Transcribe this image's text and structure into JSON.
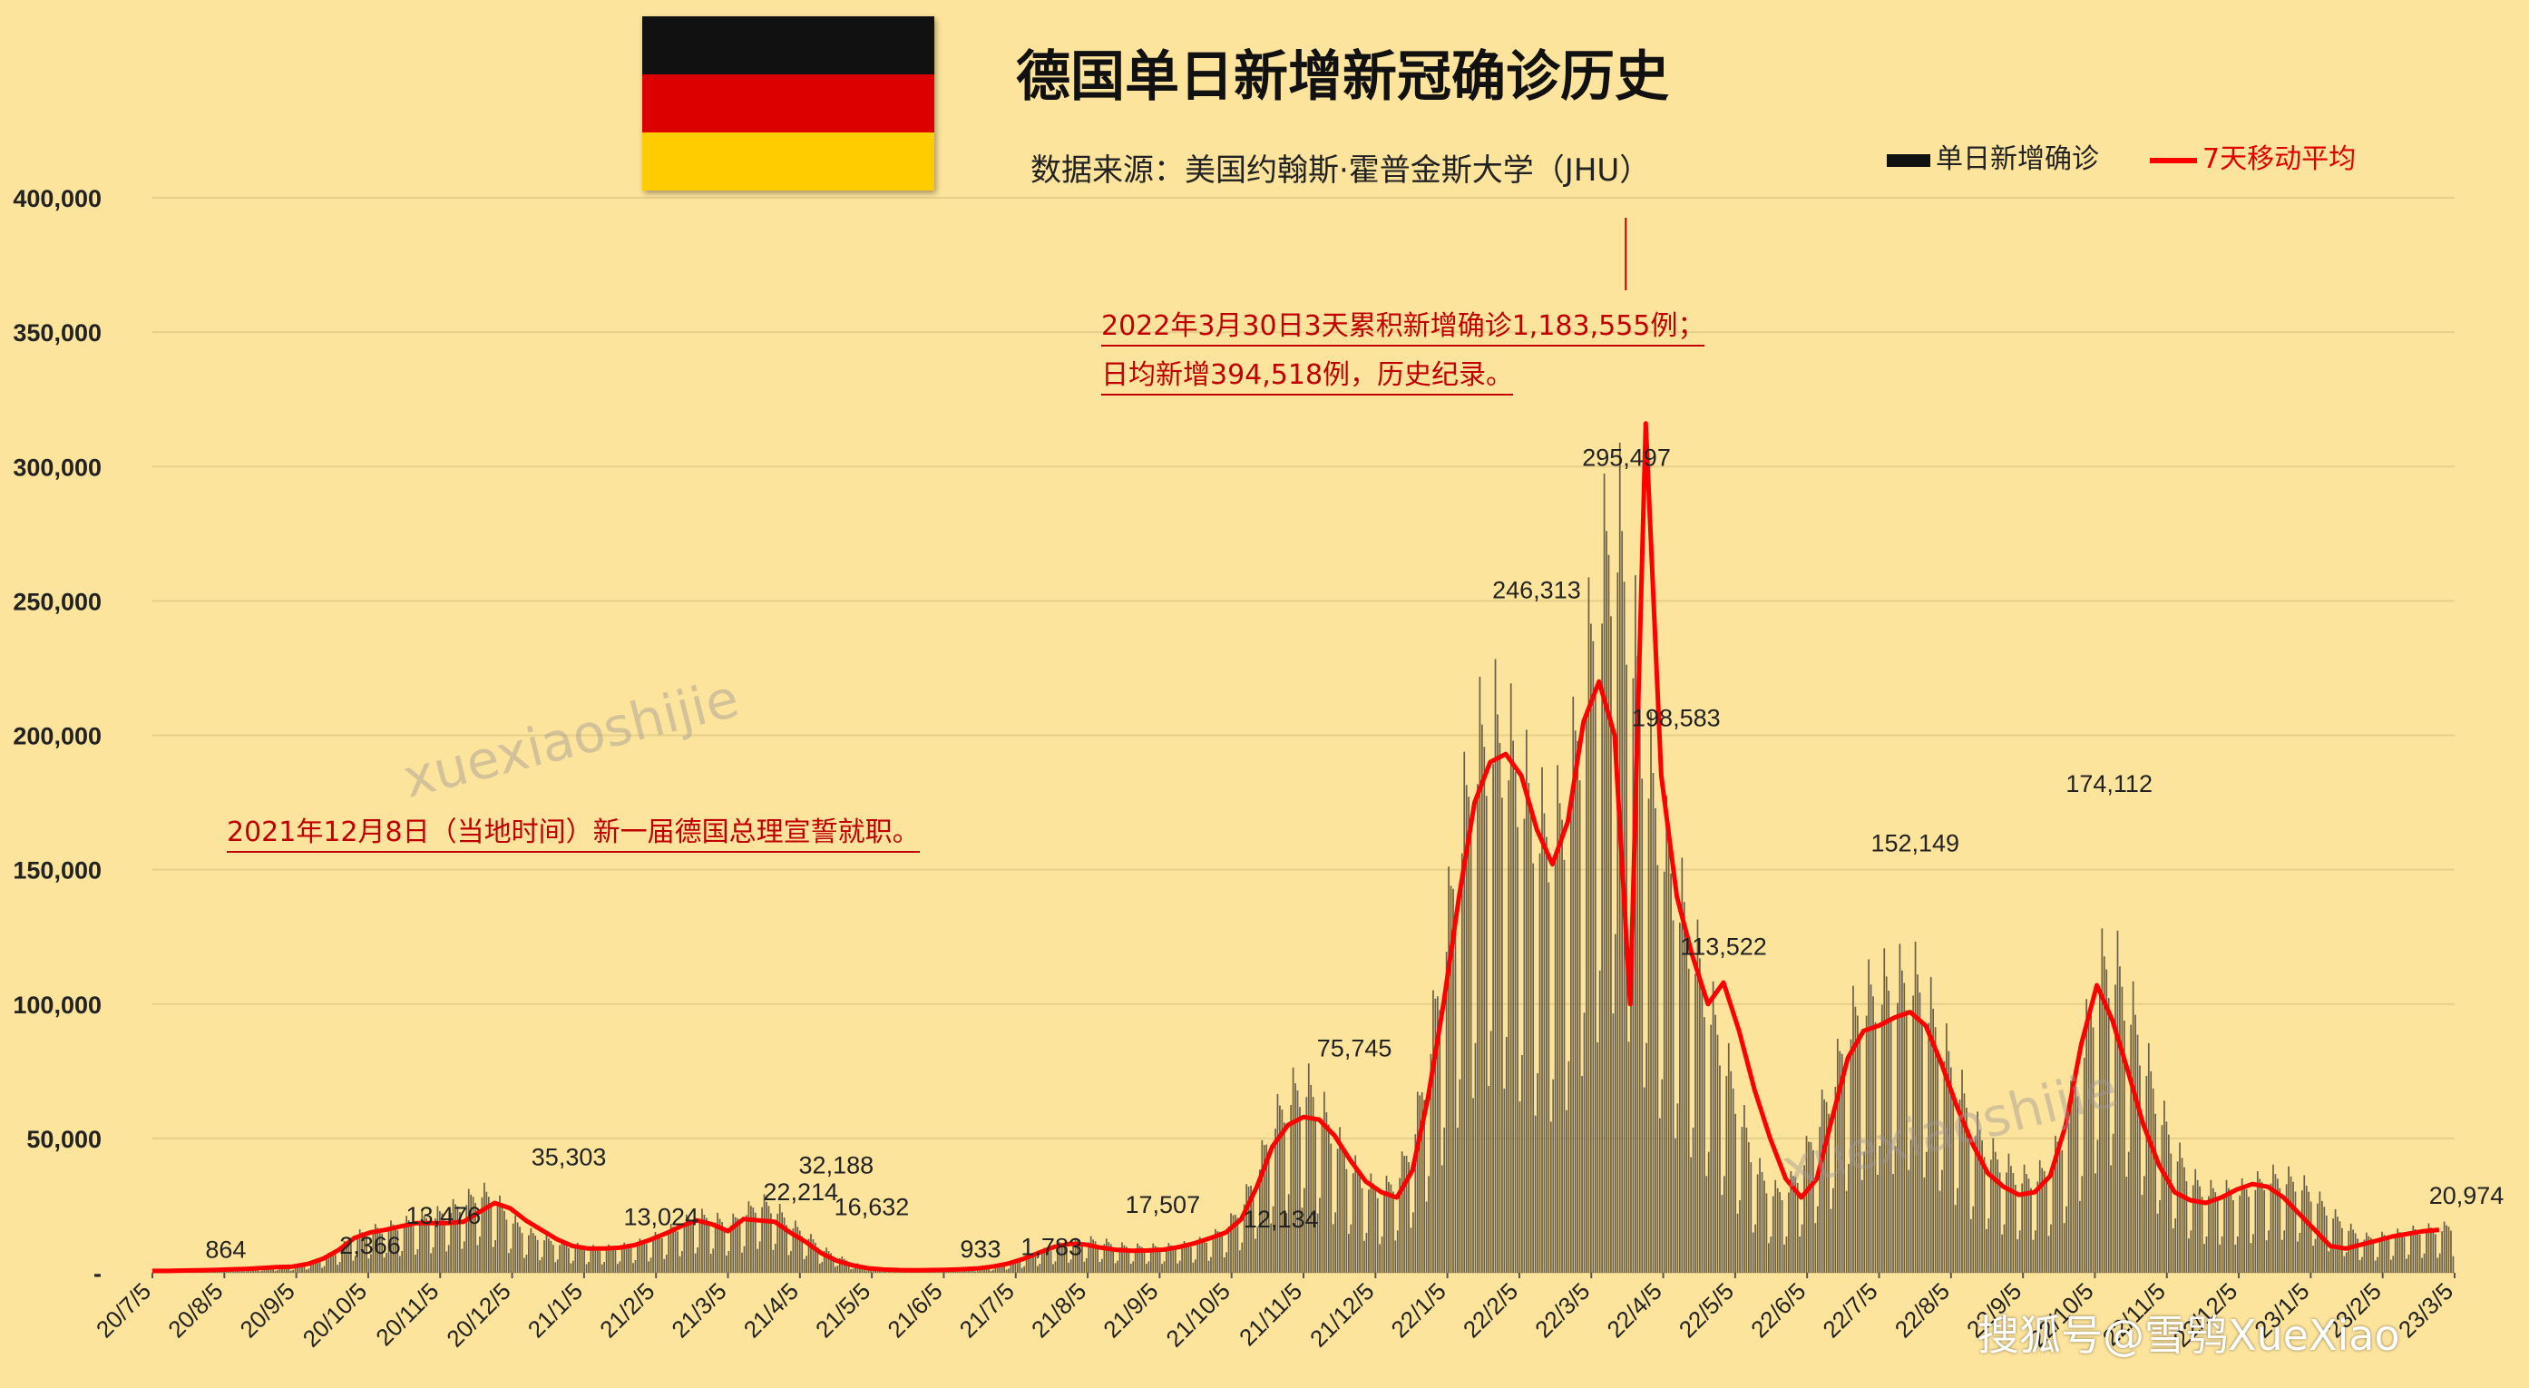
{
  "title": "德国单日新增新冠确诊历史",
  "subtitle": "数据来源：美国约翰斯·霍普金斯大学（JHU）",
  "legend": {
    "bars": "单日新增确诊",
    "line": "7天移动平均"
  },
  "annotations": {
    "record_line1": "2022年3月30日3天累积新增确诊1,183,555例；",
    "record_line2": "日均新增394,518例，历史纪录。",
    "chancellor": "2021年12月8日（当地时间）新一届德国总理宣誓就职。"
  },
  "watermarks": {
    "text1": "xuexiaoshijie",
    "text2": "xuexiaoshijie",
    "sohu": "搜狐号@雪鸮XueXiao"
  },
  "colors": {
    "background": "#fde49c",
    "bars": "#6b6048",
    "line": "#ff0000",
    "annotation": "#c00000"
  },
  "chart_data": {
    "type": "bar",
    "y_ticks": [
      "-",
      "50,000",
      "100,000",
      "150,000",
      "200,000",
      "250,000",
      "300,000",
      "350,000",
      "400,000"
    ],
    "y_tick_values": [
      0,
      50000,
      100000,
      150000,
      200000,
      250000,
      300000,
      350000,
      400000
    ],
    "ylim": [
      0,
      400000
    ],
    "x_ticks": [
      "20/7/5",
      "20/8/5",
      "20/9/5",
      "20/10/5",
      "20/11/5",
      "20/12/5",
      "21/1/5",
      "21/2/5",
      "21/3/5",
      "21/4/5",
      "21/5/5",
      "21/6/5",
      "21/7/5",
      "21/8/5",
      "21/9/5",
      "21/10/5",
      "21/11/5",
      "21/12/5",
      "22/1/5",
      "22/2/5",
      "22/3/5",
      "22/4/5",
      "22/5/5",
      "22/6/5",
      "22/7/5",
      "22/8/5",
      "22/9/5",
      "22/10/5",
      "22/11/5",
      "22/12/5",
      "23/1/5",
      "23/2/5",
      "23/3/5"
    ],
    "grid": true,
    "bar_series_note": "weekly pattern of daily reported cases",
    "bar_weekly_levels": [
      800,
      700,
      900,
      1000,
      1100,
      1300,
      1500,
      1800,
      2200,
      2400,
      3500,
      5500,
      9000,
      13500,
      15500,
      16500,
      18000,
      19500,
      21000,
      23000,
      26000,
      30000,
      27000,
      20000,
      15000,
      13000,
      11000,
      10000,
      9000,
      9000,
      9500,
      10500,
      12500,
      15000,
      18000,
      21000,
      20000,
      18000,
      22000,
      26000,
      24000,
      18000,
      14000,
      9000,
      6000,
      3500,
      2000,
      1400,
      1100,
      1000,
      1000,
      1100,
      1300,
      1600,
      2400,
      3500,
      5500,
      7500,
      9500,
      11000,
      12000,
      11500,
      10000,
      9500,
      9500,
      9500,
      10000,
      11000,
      13000,
      17000,
      25000,
      38000,
      55000,
      65000,
      70000,
      62000,
      50000,
      40000,
      33000,
      30000,
      35000,
      50000,
      80000,
      120000,
      160000,
      190000,
      200000,
      195000,
      180000,
      165000,
      160000,
      175000,
      215000,
      250000,
      280000,
      240000,
      190000,
      160000,
      140000,
      120000,
      100000,
      80000,
      60000,
      40000,
      30000,
      30000,
      40000,
      55000,
      70000,
      90000,
      100000,
      105000,
      105000,
      110000,
      100000,
      85000,
      70000,
      55000,
      45000,
      40000,
      35000,
      35000,
      40000,
      55000,
      80000,
      110000,
      115000,
      100000,
      80000,
      60000,
      45000,
      35000,
      30000,
      30000,
      30000,
      32000,
      35000,
      35000,
      33000,
      28000,
      22000,
      17000,
      13000,
      13000,
      14000,
      15000,
      16000,
      16000,
      18000
    ],
    "line_weekly_levels": [
      700,
      700,
      850,
      950,
      1050,
      1250,
      1450,
      1750,
      2100,
      2300,
      3300,
      5300,
      8600,
      13000,
      15000,
      16000,
      17300,
      18500,
      18500,
      18500,
      19000,
      22500,
      26000,
      24000,
      19500,
      16000,
      12500,
      10000,
      9000,
      9000,
      9300,
      10300,
      12300,
      14600,
      17400,
      19500,
      18000,
      15500,
      20000,
      19500,
      19000,
      15000,
      11500,
      7300,
      4500,
      2800,
      1700,
      1200,
      1000,
      950,
      1000,
      1100,
      1300,
      1600,
      2300,
      3400,
      5200,
      7500,
      9700,
      10800,
      10500,
      9300,
      8500,
      8200,
      8300,
      8600,
      9600,
      11000,
      12900,
      15000,
      20000,
      32000,
      47000,
      55000,
      58000,
      57000,
      51000,
      42000,
      34000,
      30000,
      28000,
      38000,
      65000,
      100000,
      140000,
      175000,
      190000,
      193000,
      185000,
      165000,
      152000,
      168000,
      205000,
      220000,
      200000,
      100000,
      316000,
      185000,
      140000,
      118000,
      100000,
      108000,
      90000,
      68000,
      50000,
      35000,
      28000,
      35000,
      58000,
      80000,
      90000,
      92000,
      95000,
      97000,
      92000,
      78000,
      62000,
      48000,
      37000,
      32000,
      29000,
      30000,
      36000,
      55000,
      85000,
      107000,
      94000,
      75000,
      55000,
      40000,
      30000,
      27000,
      26000,
      28000,
      31000,
      33000,
      32000,
      28000,
      22000,
      16000,
      10000,
      9000,
      10500,
      12000,
      13500,
      14500,
      15500,
      16000
    ],
    "data_labels": [
      {
        "text": "864",
        "x": "20/8/5",
        "value": 864
      },
      {
        "text": "2,366",
        "x": "20/10/5",
        "value": 2366
      },
      {
        "text": "13,476",
        "x": "20/11/5",
        "value": 13476
      },
      {
        "text": "35,303",
        "x": "20/12/28",
        "value": 35303
      },
      {
        "text": "13,024",
        "x": "21/2/5",
        "value": 13024
      },
      {
        "text": "22,214",
        "x": "21/4/5",
        "value": 22214
      },
      {
        "text": "32,188",
        "x": "21/4/20",
        "value": 32188
      },
      {
        "text": "16,632",
        "x": "21/5/5",
        "value": 16632
      },
      {
        "text": "933",
        "x": "21/6/20",
        "value": 933
      },
      {
        "text": "1,783",
        "x": "21/7/20",
        "value": 1783
      },
      {
        "text": "17,507",
        "x": "21/9/5",
        "value": 17507
      },
      {
        "text": "12,134",
        "x": "21/10/25",
        "value": 12134
      },
      {
        "text": "75,745",
        "x": "21/11/25",
        "value": 75745
      },
      {
        "text": "246,313",
        "x": "22/2/10",
        "value": 246313
      },
      {
        "text": "295,497",
        "x": "22/3/20",
        "value": 295497
      },
      {
        "text": "198,583",
        "x": "22/4/10",
        "value": 198583
      },
      {
        "text": "113,522",
        "x": "22/4/30",
        "value": 113522
      },
      {
        "text": "152,149",
        "x": "22/7/20",
        "value": 152149
      },
      {
        "text": "174,112",
        "x": "22/10/10",
        "value": 174112
      },
      {
        "text": "20,974",
        "x": "23/3/10",
        "value": 20974
      }
    ]
  }
}
